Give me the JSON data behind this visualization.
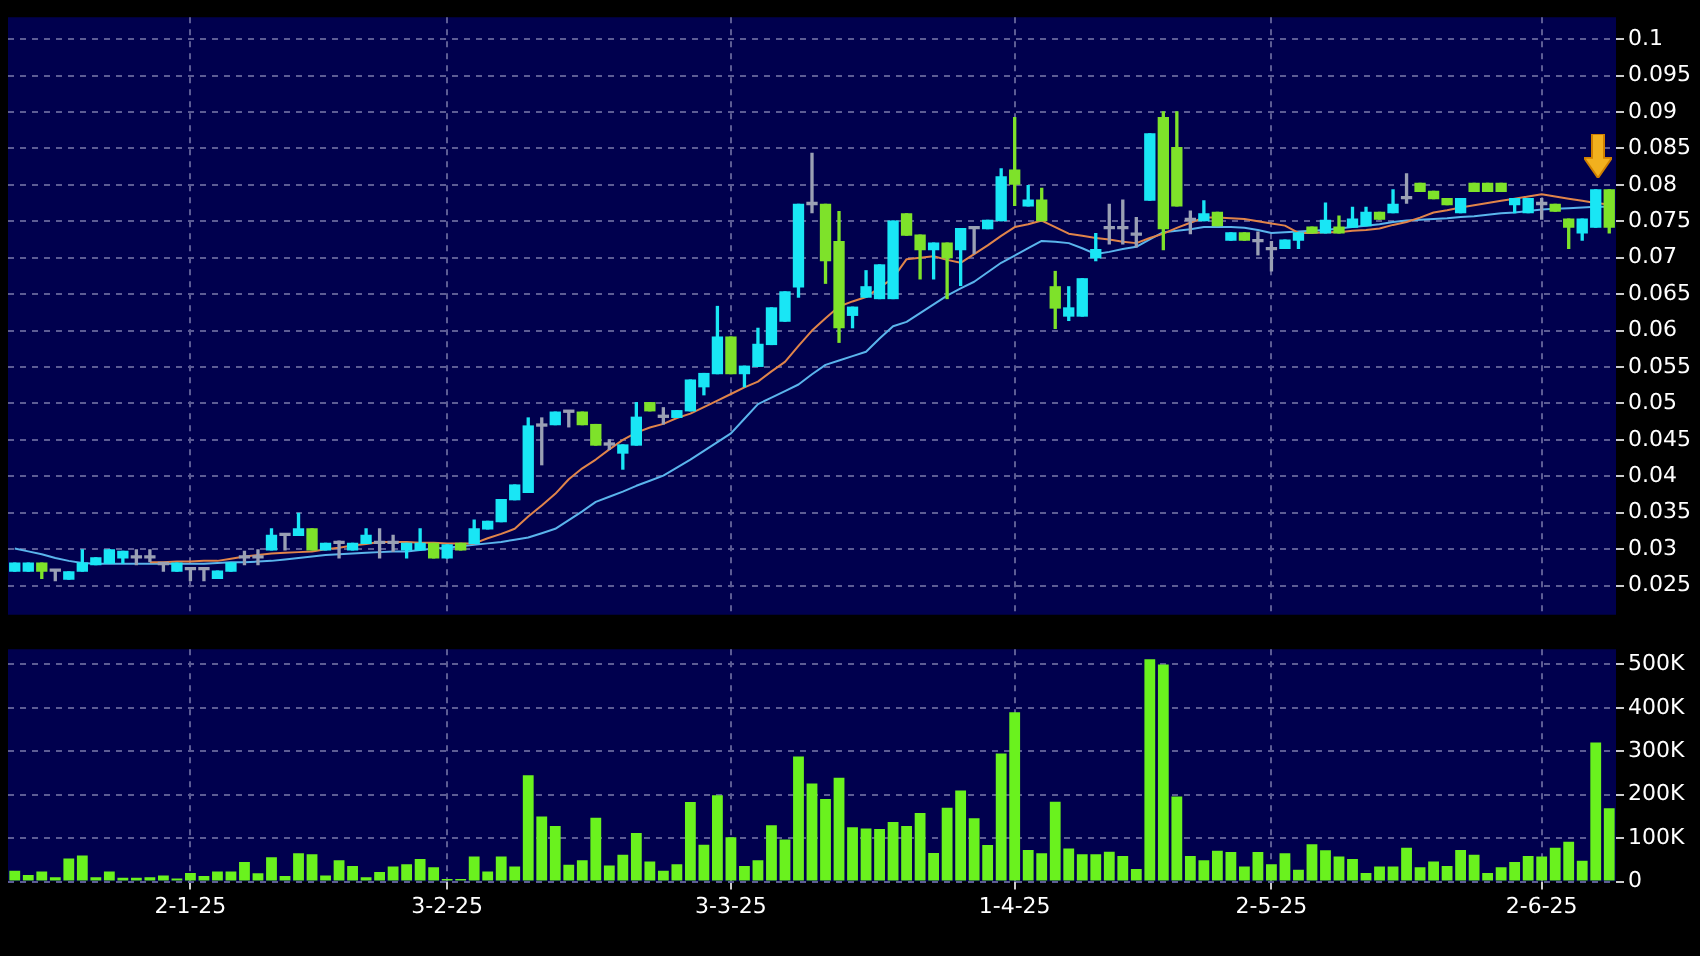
{
  "chart_data": [
    {
      "type": "candlestick",
      "categories": [
        null,
        null,
        null,
        null,
        null,
        null,
        null,
        null,
        null,
        null,
        null,
        null,
        null,
        null,
        null,
        null,
        null,
        null,
        null,
        null,
        null,
        null,
        null,
        null,
        null,
        null,
        null,
        null,
        null,
        null,
        null,
        null,
        null,
        null,
        null,
        null,
        null,
        null,
        null,
        null,
        null,
        null,
        null,
        null,
        null,
        null,
        null,
        null,
        null,
        null,
        null,
        null,
        null,
        null,
        null,
        null,
        null,
        null,
        null,
        null,
        null,
        null,
        null,
        null,
        null,
        null,
        null,
        null,
        null,
        null,
        null,
        null,
        null,
        null,
        null,
        null,
        null,
        null,
        null,
        null,
        null,
        null,
        null,
        null,
        null,
        null,
        null,
        null,
        null,
        null,
        null,
        null,
        null,
        null,
        null,
        null,
        null,
        null,
        null,
        null,
        null,
        null,
        null,
        null,
        null,
        null,
        null,
        null,
        null,
        null,
        null,
        null,
        null,
        null,
        null,
        null,
        null,
        null,
        null
      ],
      "ohlc": [
        [
          0.027,
          0.0281,
          0.027,
          0.0281
        ],
        [
          0.027,
          0.0281,
          0.027,
          0.0281
        ],
        [
          0.0281,
          0.0281,
          0.026,
          0.027
        ],
        [
          0.027,
          0.027,
          0.0257,
          0.027
        ],
        [
          0.0259,
          0.0269,
          0.0259,
          0.0269
        ],
        [
          0.027,
          0.0299,
          0.027,
          0.0281
        ],
        [
          0.0279,
          0.0288,
          0.0279,
          0.0288
        ],
        [
          0.0281,
          0.0299,
          0.0281,
          0.0299
        ],
        [
          0.0288,
          0.0297,
          0.0281,
          0.0297
        ],
        [
          0.0288,
          0.0299,
          0.0279,
          0.0288
        ],
        [
          0.0288,
          0.0299,
          0.0283,
          0.0288
        ],
        [
          0.0279,
          0.0281,
          0.027,
          0.0279
        ],
        [
          0.027,
          0.0281,
          0.027,
          0.0281
        ],
        [
          0.0272,
          0.0272,
          0.0257,
          0.0272
        ],
        [
          0.0272,
          0.0272,
          0.0257,
          0.0272
        ],
        [
          0.026,
          0.027,
          0.026,
          0.027
        ],
        [
          0.027,
          0.0281,
          0.027,
          0.0281
        ],
        [
          0.0288,
          0.0297,
          0.0279,
          0.0288
        ],
        [
          0.0288,
          0.0299,
          0.0279,
          0.0288
        ],
        [
          0.0299,
          0.0328,
          0.0299,
          0.0319
        ],
        [
          0.0319,
          0.0319,
          0.0299,
          0.0319
        ],
        [
          0.0319,
          0.0349,
          0.0319,
          0.0328
        ],
        [
          0.0328,
          0.0328,
          0.0299,
          0.0299
        ],
        [
          0.0299,
          0.0308,
          0.0299,
          0.0308
        ],
        [
          0.0308,
          0.0311,
          0.0288,
          0.0308
        ],
        [
          0.0299,
          0.0308,
          0.0299,
          0.0308
        ],
        [
          0.0308,
          0.0328,
          0.0308,
          0.0319
        ],
        [
          0.0308,
          0.0328,
          0.0288,
          0.0308
        ],
        [
          0.0308,
          0.0319,
          0.0297,
          0.0308
        ],
        [
          0.0299,
          0.0308,
          0.0288,
          0.0308
        ],
        [
          0.0299,
          0.0328,
          0.0299,
          0.0308
        ],
        [
          0.0308,
          0.0308,
          0.0288,
          0.0288
        ],
        [
          0.0288,
          0.0306,
          0.0288,
          0.0306
        ],
        [
          0.0308,
          0.0308,
          0.0299,
          0.0299
        ],
        [
          0.0308,
          0.034,
          0.0308,
          0.0328
        ],
        [
          0.0328,
          0.0338,
          0.0328,
          0.0338
        ],
        [
          0.0338,
          0.0368,
          0.0338,
          0.0368
        ],
        [
          0.0368,
          0.0388,
          0.0368,
          0.0388
        ],
        [
          0.0378,
          0.048,
          0.0378,
          0.0469
        ],
        [
          0.0469,
          0.048,
          0.0416,
          0.0469
        ],
        [
          0.0471,
          0.0488,
          0.0471,
          0.0488
        ],
        [
          0.0488,
          0.0488,
          0.0468,
          0.0488
        ],
        [
          0.0488,
          0.0488,
          0.0471,
          0.0471
        ],
        [
          0.0471,
          0.0471,
          0.0443,
          0.0443
        ],
        [
          0.0443,
          0.045,
          0.0437,
          0.0443
        ],
        [
          0.0432,
          0.0443,
          0.041,
          0.0443
        ],
        [
          0.0443,
          0.0501,
          0.0443,
          0.0481
        ],
        [
          0.0501,
          0.0501,
          0.049,
          0.049
        ],
        [
          0.0481,
          0.0494,
          0.0472,
          0.0481
        ],
        [
          0.0481,
          0.049,
          0.0481,
          0.049
        ],
        [
          0.049,
          0.0532,
          0.049,
          0.0532
        ],
        [
          0.0523,
          0.0541,
          0.0512,
          0.0541
        ],
        [
          0.0541,
          0.0633,
          0.0541,
          0.0591
        ],
        [
          0.0591,
          0.0591,
          0.0541,
          0.0541
        ],
        [
          0.0541,
          0.0551,
          0.0523,
          0.0551
        ],
        [
          0.0551,
          0.0603,
          0.0551,
          0.0581
        ],
        [
          0.0581,
          0.0631,
          0.0581,
          0.0631
        ],
        [
          0.0613,
          0.0653,
          0.0613,
          0.0653
        ],
        [
          0.066,
          0.0773,
          0.0646,
          0.0773
        ],
        [
          0.0773,
          0.0843,
          0.0762,
          0.0773
        ],
        [
          0.0773,
          0.0773,
          0.0665,
          0.0696
        ],
        [
          0.0722,
          0.0763,
          0.0584,
          0.0604
        ],
        [
          0.0621,
          0.0632,
          0.0604,
          0.0632
        ],
        [
          0.0646,
          0.0682,
          0.0646,
          0.066
        ],
        [
          0.0644,
          0.069,
          0.0644,
          0.069
        ],
        [
          0.0644,
          0.075,
          0.0644,
          0.075
        ],
        [
          0.076,
          0.076,
          0.0731,
          0.0731
        ],
        [
          0.0731,
          0.0731,
          0.0671,
          0.0711
        ],
        [
          0.0711,
          0.072,
          0.0671,
          0.072
        ],
        [
          0.072,
          0.072,
          0.0644,
          0.07
        ],
        [
          0.0711,
          0.074,
          0.0662,
          0.074
        ],
        [
          0.074,
          0.074,
          0.0706,
          0.074
        ],
        [
          0.074,
          0.0751,
          0.074,
          0.0751
        ],
        [
          0.0751,
          0.0822,
          0.0751,
          0.0811
        ],
        [
          0.082,
          0.0892,
          0.0772,
          0.0801
        ],
        [
          0.0771,
          0.0799,
          0.0771,
          0.0779
        ],
        [
          0.0779,
          0.0795,
          0.0751,
          0.0751
        ],
        [
          0.066,
          0.0681,
          0.0603,
          0.0631
        ],
        [
          0.062,
          0.066,
          0.0614,
          0.0631
        ],
        [
          0.062,
          0.0671,
          0.062,
          0.0671
        ],
        [
          0.07,
          0.0733,
          0.0696,
          0.0711
        ],
        [
          0.074,
          0.0773,
          0.0719,
          0.074
        ],
        [
          0.074,
          0.0779,
          0.0719,
          0.074
        ],
        [
          0.0731,
          0.0755,
          0.0715,
          0.0731
        ],
        [
          0.0779,
          0.087,
          0.0779,
          0.087
        ],
        [
          0.0892,
          0.09,
          0.0711,
          0.074
        ],
        [
          0.0851,
          0.09,
          0.0771,
          0.0771
        ],
        [
          0.0751,
          0.0764,
          0.0733,
          0.0751
        ],
        [
          0.0751,
          0.0778,
          0.0751,
          0.076
        ],
        [
          0.0762,
          0.0762,
          0.0744,
          0.0744
        ],
        [
          0.0724,
          0.0734,
          0.0724,
          0.0734
        ],
        [
          0.0734,
          0.0734,
          0.0724,
          0.0724
        ],
        [
          0.0722,
          0.0735,
          0.0704,
          0.0722
        ],
        [
          0.0711,
          0.0722,
          0.0682,
          0.0711
        ],
        [
          0.0713,
          0.0724,
          0.0713,
          0.0724
        ],
        [
          0.0724,
          0.0734,
          0.0713,
          0.0734
        ],
        [
          0.0742,
          0.0742,
          0.0734,
          0.0734
        ],
        [
          0.0734,
          0.0775,
          0.0734,
          0.0751
        ],
        [
          0.0742,
          0.0757,
          0.0734,
          0.0734
        ],
        [
          0.0742,
          0.0769,
          0.0742,
          0.0753
        ],
        [
          0.0744,
          0.0769,
          0.0744,
          0.0762
        ],
        [
          0.0762,
          0.0762,
          0.0753,
          0.0753
        ],
        [
          0.0762,
          0.0793,
          0.0762,
          0.0773
        ],
        [
          0.0781,
          0.0815,
          0.0775,
          0.0781
        ],
        [
          0.0802,
          0.0802,
          0.0791,
          0.0791
        ],
        [
          0.0791,
          0.0791,
          0.0781,
          0.0781
        ],
        [
          0.0781,
          0.0781,
          0.0773,
          0.0773
        ],
        [
          0.0762,
          0.0781,
          0.0762,
          0.0781
        ],
        [
          0.0802,
          0.0802,
          0.0791,
          0.0791
        ],
        [
          0.0802,
          0.0802,
          0.0791,
          0.0791
        ],
        [
          0.0802,
          0.0802,
          0.0791,
          0.0791
        ],
        [
          0.0773,
          0.0781,
          0.0762,
          0.0781
        ],
        [
          0.0762,
          0.0781,
          0.0762,
          0.0781
        ],
        [
          0.0773,
          0.0781,
          0.0753,
          0.0773
        ],
        [
          0.0773,
          0.0773,
          0.0764,
          0.0764
        ],
        [
          0.0753,
          0.0753,
          0.0713,
          0.0742
        ],
        [
          0.0734,
          0.0753,
          0.0724,
          0.0753
        ],
        [
          0.0742,
          0.0793,
          0.0742,
          0.0793
        ],
        [
          0.0793,
          0.0793,
          0.0734,
          0.0742
        ]
      ],
      "colors": [
        "#19e6f5",
        "#19e6f5",
        "#7ee22a",
        "#9aa0b4",
        "#19e6f5",
        "#19e6f5",
        "#19e6f5",
        "#19e6f5",
        "#19e6f5",
        "#9aa0b4",
        "#9aa0b4",
        "#9aa0b4",
        "#19e6f5",
        "#9aa0b4",
        "#9aa0b4",
        "#19e6f5",
        "#19e6f5",
        "#9aa0b4",
        "#9aa0b4",
        "#19e6f5",
        "#9aa0b4",
        "#19e6f5",
        "#7ee22a",
        "#19e6f5",
        "#9aa0b4",
        "#19e6f5",
        "#19e6f5",
        "#9aa0b4",
        "#9aa0b4",
        "#19e6f5",
        "#19e6f5",
        "#7ee22a",
        "#19e6f5",
        "#7ee22a",
        "#19e6f5",
        "#19e6f5",
        "#19e6f5",
        "#19e6f5",
        "#19e6f5",
        "#9aa0b4",
        "#19e6f5",
        "#9aa0b4",
        "#7ee22a",
        "#7ee22a",
        "#9aa0b4",
        "#19e6f5",
        "#19e6f5",
        "#7ee22a",
        "#9aa0b4",
        "#19e6f5",
        "#19e6f5",
        "#19e6f5",
        "#19e6f5",
        "#7ee22a",
        "#19e6f5",
        "#19e6f5",
        "#19e6f5",
        "#19e6f5",
        "#19e6f5",
        "#9aa0b4",
        "#7ee22a",
        "#7ee22a",
        "#19e6f5",
        "#19e6f5",
        "#19e6f5",
        "#19e6f5",
        "#7ee22a",
        "#7ee22a",
        "#19e6f5",
        "#7ee22a",
        "#19e6f5",
        "#9aa0b4",
        "#19e6f5",
        "#19e6f5",
        "#7ee22a",
        "#19e6f5",
        "#7ee22a",
        "#7ee22a",
        "#19e6f5",
        "#19e6f5",
        "#19e6f5",
        "#9aa0b4",
        "#9aa0b4",
        "#9aa0b4",
        "#19e6f5",
        "#7ee22a",
        "#7ee22a",
        "#9aa0b4",
        "#19e6f5",
        "#7ee22a",
        "#19e6f5",
        "#7ee22a",
        "#9aa0b4",
        "#9aa0b4",
        "#19e6f5",
        "#19e6f5",
        "#7ee22a",
        "#19e6f5",
        "#7ee22a",
        "#19e6f5",
        "#19e6f5",
        "#7ee22a",
        "#19e6f5",
        "#9aa0b4",
        "#7ee22a",
        "#7ee22a",
        "#7ee22a",
        "#19e6f5",
        "#7ee22a",
        "#7ee22a",
        "#7ee22a",
        "#19e6f5",
        "#19e6f5",
        "#9aa0b4",
        "#7ee22a",
        "#7ee22a",
        "#19e6f5",
        "#19e6f5",
        "#7ee22a"
      ],
      "series": [
        {
          "type": "line",
          "color": "#e0844a",
          "values": [
            null,
            null,
            null,
            null,
            null,
            null,
            null,
            null,
            null,
            null,
            0.0282,
            0.0282,
            0.0283,
            0.0283,
            0.0284,
            0.0284,
            0.0287,
            0.029,
            0.0292,
            0.0294,
            0.0295,
            0.0296,
            0.0297,
            0.03,
            0.0302,
            0.0305,
            0.0307,
            0.031,
            0.031,
            0.031,
            0.0309,
            0.0309,
            0.0308,
            0.0308,
            0.0308,
            0.0315,
            0.0321,
            0.0328,
            0.0345,
            0.036,
            0.0376,
            0.0396,
            0.0411,
            0.0423,
            0.0437,
            0.045,
            0.046,
            0.0467,
            0.0472,
            0.048,
            0.0486,
            0.0495,
            0.0504,
            0.0513,
            0.0522,
            0.053,
            0.0544,
            0.0557,
            0.0579,
            0.06,
            0.0617,
            0.0633,
            0.064,
            0.0646,
            0.0659,
            0.0672,
            0.0698,
            0.07,
            0.0702,
            0.0697,
            0.0693,
            0.0705,
            0.0717,
            0.073,
            0.0742,
            0.0746,
            0.0751,
            0.0742,
            0.0733,
            0.073,
            0.0727,
            0.0725,
            0.0722,
            0.072,
            0.0727,
            0.0733,
            0.0741,
            0.0748,
            0.0755,
            0.0755,
            0.0754,
            0.0753,
            0.075,
            0.0747,
            0.0744,
            0.0734,
            0.0734,
            0.0735,
            0.0735,
            0.0737,
            0.0738,
            0.074,
            0.0745,
            0.0749,
            0.0755,
            0.0762,
            0.0765,
            0.0769,
            0.0772,
            0.0775,
            0.0778,
            0.0781,
            0.0784,
            0.0787,
            0.0784,
            0.0781,
            0.0778,
            0.0775,
            0.0773
          ]
        },
        {
          "type": "line",
          "color": "#5ab4ec",
          "values": [
            0.0301,
            0.0297,
            0.0293,
            0.0288,
            0.0284,
            0.0281,
            0.028,
            0.028,
            0.028,
            0.028,
            0.028,
            0.028,
            0.028,
            0.028,
            0.028,
            0.0281,
            0.0282,
            0.0282,
            0.0283,
            0.0284,
            0.0286,
            0.0288,
            0.029,
            0.0292,
            0.0293,
            0.0294,
            0.0295,
            0.0296,
            0.0297,
            0.0297,
            0.0299,
            0.0301,
            0.0302,
            0.0304,
            0.0306,
            0.0308,
            0.031,
            0.0313,
            0.0316,
            0.0322,
            0.0328,
            0.034,
            0.0352,
            0.0365,
            0.0372,
            0.0379,
            0.0387,
            0.0394,
            0.0401,
            0.0412,
            0.0423,
            0.0435,
            0.0447,
            0.0459,
            0.0479,
            0.0499,
            0.0508,
            0.0517,
            0.0526,
            0.054,
            0.0553,
            0.0559,
            0.0565,
            0.0571,
            0.0589,
            0.0606,
            0.0612,
            0.0624,
            0.0636,
            0.0648,
            0.0658,
            0.0667,
            0.068,
            0.0693,
            0.0703,
            0.0713,
            0.0723,
            0.0722,
            0.072,
            0.0713,
            0.0705,
            0.0708,
            0.0712,
            0.0715,
            0.0725,
            0.0735,
            0.0737,
            0.0739,
            0.0742,
            0.0742,
            0.0742,
            0.0741,
            0.0738,
            0.0734,
            0.0735,
            0.0736,
            0.0737,
            0.0738,
            0.074,
            0.0742,
            0.0744,
            0.0746,
            0.0749,
            0.0751,
            0.0752,
            0.0753,
            0.0754,
            0.0756,
            0.0757,
            0.0759,
            0.0761,
            0.0762,
            0.0764,
            0.0766,
            0.0767,
            0.0768,
            0.0769,
            0.077,
            0.077
          ]
        }
      ],
      "ylim": [
        0.021,
        0.103
      ],
      "yticks": [
        0.025,
        0.03,
        0.035,
        0.04,
        0.045,
        0.05,
        0.055,
        0.06,
        0.065,
        0.07,
        0.075,
        0.08,
        0.085,
        0.09,
        0.095,
        0.1
      ],
      "grid": true,
      "tick_labels": "y"
    },
    {
      "type": "bar",
      "categories": [
        null,
        null,
        null,
        null,
        null,
        null,
        null,
        null,
        null,
        null,
        null,
        null,
        null,
        "2-1-25",
        null,
        null,
        null,
        null,
        null,
        null,
        null,
        null,
        null,
        null,
        null,
        null,
        null,
        null,
        null,
        null,
        null,
        null,
        "3-2-25",
        null,
        null,
        null,
        null,
        null,
        null,
        null,
        null,
        null,
        null,
        null,
        null,
        null,
        null,
        null,
        null,
        null,
        null,
        null,
        null,
        "3-3-25",
        null,
        null,
        null,
        null,
        null,
        null,
        null,
        null,
        null,
        null,
        null,
        null,
        null,
        null,
        null,
        null,
        null,
        null,
        null,
        null,
        "1-4-25",
        null,
        null,
        null,
        null,
        null,
        null,
        null,
        null,
        null,
        null,
        null,
        null,
        null,
        null,
        null,
        null,
        null,
        null,
        "2-5-25",
        null,
        null,
        null,
        null,
        null,
        null,
        null,
        null,
        null,
        null,
        null,
        null,
        null,
        null,
        null,
        null,
        null,
        null,
        null,
        "2-6-25",
        null,
        null,
        null,
        null,
        null
      ],
      "values": [
        25000,
        15000,
        23000,
        10000,
        53000,
        60000,
        10000,
        23000,
        9000,
        9000,
        10000,
        14000,
        7000,
        20000,
        13000,
        23000,
        23000,
        45000,
        19000,
        56000,
        13000,
        65000,
        63000,
        14000,
        49000,
        36000,
        10000,
        22000,
        35000,
        40000,
        52000,
        33000,
        6000,
        6000,
        58000,
        23000,
        58000,
        35000,
        245000,
        150000,
        128000,
        39000,
        49000,
        147000,
        37000,
        62000,
        112000,
        46000,
        25000,
        40000,
        183000,
        85000,
        199000,
        102000,
        36000,
        49000,
        130000,
        97000,
        288000,
        226000,
        190000,
        239000,
        125000,
        122000,
        121000,
        137000,
        128000,
        158000,
        66000,
        170000,
        210000,
        146000,
        84000,
        295000,
        390000,
        73000,
        65000,
        184000,
        76000,
        63000,
        63000,
        69000,
        59000,
        29000,
        512000,
        500000,
        196000,
        59000,
        49000,
        71000,
        68000,
        35000,
        68000,
        40000,
        65000,
        27000,
        86000,
        72000,
        58000,
        52000,
        20000,
        35000,
        35000,
        78000,
        33000,
        46000,
        36000,
        73000,
        62000,
        20000,
        33000,
        45000,
        59000,
        58000,
        78000,
        92000,
        48000,
        320000,
        169000
      ],
      "color": "#6af21e",
      "ylim": [
        0,
        535000
      ],
      "yticks": [
        0,
        {
          "value": 100000,
          "label": "100K"
        },
        {
          "value": 200000,
          "label": "200K"
        },
        {
          "value": 300000,
          "label": "300K"
        },
        {
          "value": 400000,
          "label": "400K"
        },
        {
          "value": 500000,
          "label": "500K"
        }
      ],
      "grid": true
    }
  ]
}
